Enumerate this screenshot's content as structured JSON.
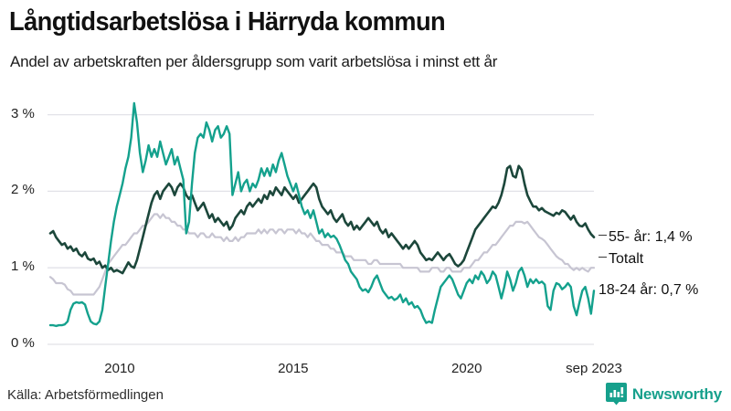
{
  "header": {
    "title": "Långtidsarbetslösa i Härryda kommun",
    "subtitle": "Andel av arbetskraften per åldersgrupp som varit arbetslösa i minst ett år"
  },
  "footer": {
    "source": "Källa: Arbetsförmedlingen",
    "brand": "Newsworthy"
  },
  "colors": {
    "accent_teal": "#16a08c",
    "line_55": "#1c473b",
    "line_total": "#c7c5d2",
    "line_1824": "#14a18d",
    "grid": "#e2e2e8",
    "text": "#111111"
  },
  "chart_data": {
    "type": "line",
    "title": "Långtidsarbetslösa i Härryda kommun",
    "subtitle": "Andel av arbetskraften per åldersgrupp som varit arbetslösa i minst ett år",
    "x_start": "2008-01",
    "x_end": "2023-09",
    "x_unit": "month",
    "ylim": [
      0,
      3.3
    ],
    "grid": true,
    "y_ticks": [
      {
        "label": "0 %",
        "value": 0
      },
      {
        "label": "1 %",
        "value": 1
      },
      {
        "label": "2 %",
        "value": 2
      },
      {
        "label": "3 %",
        "value": 3
      }
    ],
    "x_ticks": [
      {
        "label": "2010",
        "month": 24
      },
      {
        "label": "2015",
        "month": 84
      },
      {
        "label": "2020",
        "month": 144
      },
      {
        "label": "sep 2023",
        "month": 188
      }
    ],
    "series": [
      {
        "name": "Totalt",
        "end_label": "Totalt",
        "tick": true,
        "color": "#c7c5d2",
        "width": 2.2,
        "values": [
          0.88,
          0.85,
          0.8,
          0.8,
          0.8,
          0.78,
          0.72,
          0.7,
          0.65,
          0.65,
          0.65,
          0.65,
          0.65,
          0.65,
          0.65,
          0.65,
          0.7,
          0.75,
          0.85,
          0.95,
          1.05,
          1.1,
          1.15,
          1.2,
          1.25,
          1.3,
          1.3,
          1.35,
          1.4,
          1.45,
          1.45,
          1.5,
          1.55,
          1.55,
          1.6,
          1.65,
          1.7,
          1.7,
          1.65,
          1.7,
          1.65,
          1.65,
          1.6,
          1.6,
          1.55,
          1.55,
          1.5,
          1.5,
          1.45,
          1.45,
          1.45,
          1.4,
          1.45,
          1.45,
          1.4,
          1.4,
          1.45,
          1.4,
          1.4,
          1.4,
          1.35,
          1.4,
          1.35,
          1.35,
          1.4,
          1.35,
          1.4,
          1.4,
          1.45,
          1.45,
          1.45,
          1.45,
          1.5,
          1.45,
          1.5,
          1.45,
          1.5,
          1.5,
          1.45,
          1.5,
          1.5,
          1.45,
          1.5,
          1.5,
          1.5,
          1.45,
          1.5,
          1.45,
          1.45,
          1.4,
          1.45,
          1.4,
          1.35,
          1.35,
          1.3,
          1.3,
          1.3,
          1.25,
          1.25,
          1.2,
          1.2,
          1.2,
          1.15,
          1.15,
          1.15,
          1.1,
          1.1,
          1.1,
          1.1,
          1.1,
          1.05,
          1.05,
          1.1,
          1.1,
          1.05,
          1.05,
          1.05,
          1.05,
          1.05,
          1.05,
          1.05,
          1.05,
          1.0,
          1.0,
          1.0,
          1.0,
          1.0,
          1.0,
          0.95,
          0.95,
          0.95,
          0.95,
          1.0,
          1.0,
          1.0,
          0.95,
          0.95,
          1.0,
          1.0,
          0.95,
          0.95,
          0.95,
          0.95,
          1.0,
          1.0,
          1.0,
          1.05,
          1.1,
          1.1,
          1.15,
          1.2,
          1.2,
          1.25,
          1.3,
          1.3,
          1.35,
          1.4,
          1.45,
          1.5,
          1.55,
          1.55,
          1.6,
          1.6,
          1.6,
          1.58,
          1.6,
          1.55,
          1.5,
          1.45,
          1.4,
          1.38,
          1.35,
          1.3,
          1.25,
          1.2,
          1.15,
          1.12,
          1.1,
          1.05,
          1.05,
          1.0,
          0.97,
          1.0,
          0.97,
          1.0,
          0.97,
          0.95,
          1.0,
          1.0
        ]
      },
      {
        "name": "55- år",
        "end_label": "55- år: 1,4 %",
        "tick": true,
        "color": "#1c473b",
        "width": 2.6,
        "values": [
          1.45,
          1.48,
          1.4,
          1.35,
          1.3,
          1.32,
          1.25,
          1.28,
          1.22,
          1.25,
          1.18,
          1.15,
          1.2,
          1.12,
          1.1,
          1.12,
          1.05,
          1.08,
          1.0,
          1.03,
          0.97,
          1.0,
          0.95,
          0.97,
          0.95,
          0.93,
          1.0,
          1.07,
          1.02,
          1.0,
          1.1,
          1.25,
          1.4,
          1.55,
          1.7,
          1.85,
          1.95,
          2.0,
          1.9,
          2.0,
          2.05,
          2.1,
          2.05,
          1.95,
          2.05,
          2.1,
          2.05,
          1.95,
          1.9,
          1.95,
          1.85,
          1.75,
          1.8,
          1.85,
          1.75,
          1.65,
          1.7,
          1.6,
          1.65,
          1.6,
          1.55,
          1.6,
          1.5,
          1.55,
          1.65,
          1.7,
          1.75,
          1.7,
          1.8,
          1.85,
          1.8,
          1.85,
          1.9,
          1.85,
          1.95,
          1.9,
          2.0,
          1.95,
          2.05,
          2.0,
          1.95,
          2.05,
          2.0,
          1.95,
          1.9,
          1.95,
          1.85,
          1.9,
          1.95,
          2.0,
          2.05,
          2.1,
          2.05,
          1.9,
          1.8,
          1.75,
          1.7,
          1.75,
          1.65,
          1.6,
          1.65,
          1.7,
          1.6,
          1.55,
          1.6,
          1.5,
          1.55,
          1.5,
          1.55,
          1.6,
          1.65,
          1.6,
          1.55,
          1.6,
          1.5,
          1.45,
          1.5,
          1.4,
          1.45,
          1.4,
          1.35,
          1.3,
          1.25,
          1.3,
          1.25,
          1.3,
          1.35,
          1.3,
          1.2,
          1.15,
          1.1,
          1.12,
          1.1,
          1.15,
          1.2,
          1.15,
          1.1,
          1.15,
          1.18,
          1.12,
          1.05,
          1.02,
          1.05,
          1.1,
          1.2,
          1.3,
          1.4,
          1.5,
          1.55,
          1.6,
          1.65,
          1.7,
          1.75,
          1.8,
          1.78,
          1.85,
          1.95,
          2.1,
          2.3,
          2.33,
          2.2,
          2.18,
          2.33,
          2.28,
          2.1,
          1.95,
          1.87,
          1.8,
          1.8,
          1.75,
          1.78,
          1.74,
          1.72,
          1.7,
          1.68,
          1.72,
          1.7,
          1.75,
          1.73,
          1.68,
          1.63,
          1.68,
          1.6,
          1.55,
          1.54,
          1.58,
          1.5,
          1.44,
          1.4
        ]
      },
      {
        "name": "18-24 år",
        "end_label": "18-24 år: 0,7 %",
        "tick": false,
        "color": "#14a18d",
        "width": 2.4,
        "values": [
          0.25,
          0.25,
          0.24,
          0.25,
          0.25,
          0.26,
          0.3,
          0.45,
          0.53,
          0.55,
          0.54,
          0.55,
          0.52,
          0.4,
          0.3,
          0.27,
          0.26,
          0.3,
          0.45,
          0.75,
          1.05,
          1.35,
          1.6,
          1.8,
          1.95,
          2.1,
          2.3,
          2.45,
          2.7,
          3.15,
          2.9,
          2.5,
          2.25,
          2.4,
          2.6,
          2.45,
          2.55,
          2.45,
          2.65,
          2.5,
          2.35,
          2.45,
          2.55,
          2.35,
          2.45,
          2.3,
          2.15,
          1.45,
          1.6,
          2.1,
          2.5,
          2.7,
          2.75,
          2.7,
          2.9,
          2.8,
          2.65,
          2.8,
          2.85,
          2.7,
          2.75,
          2.85,
          2.75,
          1.95,
          2.1,
          2.25,
          2.0,
          2.1,
          2.15,
          2.0,
          2.1,
          2.05,
          2.15,
          2.3,
          2.2,
          2.3,
          2.2,
          2.35,
          2.25,
          2.4,
          2.5,
          2.35,
          2.2,
          2.1,
          2.0,
          2.1,
          1.95,
          1.8,
          1.7,
          1.75,
          1.65,
          1.75,
          1.6,
          1.45,
          1.5,
          1.4,
          1.45,
          1.4,
          1.42,
          1.38,
          1.3,
          1.2,
          1.1,
          1.05,
          0.95,
          0.9,
          0.85,
          0.75,
          0.7,
          0.72,
          0.68,
          0.75,
          0.85,
          0.9,
          0.8,
          0.7,
          0.65,
          0.6,
          0.62,
          0.58,
          0.6,
          0.65,
          0.55,
          0.6,
          0.52,
          0.55,
          0.48,
          0.5,
          0.45,
          0.35,
          0.28,
          0.3,
          0.28,
          0.45,
          0.6,
          0.75,
          0.8,
          0.85,
          0.9,
          0.85,
          0.75,
          0.65,
          0.6,
          0.7,
          0.8,
          0.85,
          0.8,
          0.9,
          0.85,
          0.95,
          0.9,
          0.8,
          0.85,
          0.95,
          0.9,
          0.75,
          0.6,
          0.75,
          0.95,
          0.85,
          0.7,
          0.8,
          0.95,
          1.0,
          0.9,
          0.75,
          0.85,
          0.8,
          0.85,
          0.8,
          0.82,
          0.78,
          0.5,
          0.45,
          0.7,
          0.8,
          0.78,
          0.72,
          0.75,
          0.8,
          0.75,
          0.5,
          0.38,
          0.55,
          0.7,
          0.75,
          0.6,
          0.4,
          0.7
        ]
      }
    ]
  }
}
